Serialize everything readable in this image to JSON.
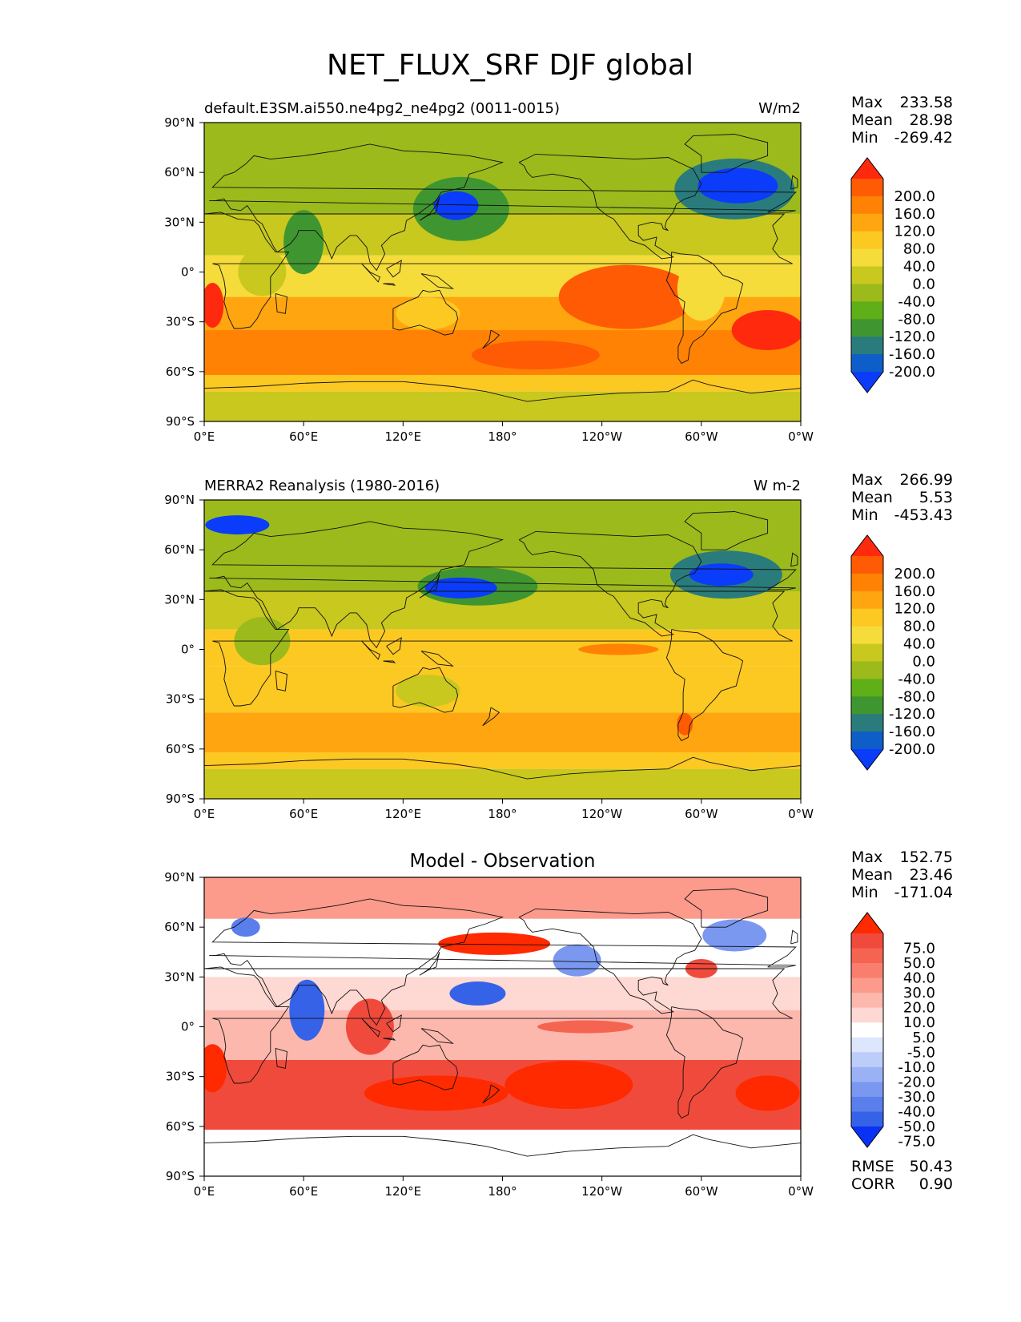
{
  "figure": {
    "title": "NET_FLUX_SRF DJF global"
  },
  "chart_data": [
    {
      "type": "heatmap",
      "subtitle_left": "default.E3SM.ai550.ne4pg2_ne4pg2 (0011-0015)",
      "subtitle_right": "W/m2",
      "stats": {
        "max_label": "Max",
        "max": "233.58",
        "mean_label": "Mean",
        "mean": "28.98",
        "min_label": "Min",
        "min": "-269.42"
      },
      "colorbar": {
        "levels": [
          "200.0",
          "160.0",
          "120.0",
          "80.0",
          "40.0",
          "0.0",
          "-40.0",
          "-80.0",
          "-120.0",
          "-160.0",
          "-200.0"
        ],
        "colors": [
          "#ff2a0e",
          "#ff5a04",
          "#ff8204",
          "#ffa50f",
          "#fcc822",
          "#f5dc3a",
          "#c8c81e",
          "#9cba1b",
          "#5faf18",
          "#3f9630",
          "#2a7c7c",
          "#0d5ec8",
          "#0a3cfa"
        ]
      },
      "xticks": [
        "0°E",
        "60°E",
        "120°E",
        "180°",
        "120°W",
        "60°W",
        "0°W"
      ],
      "yticks": [
        "90°N",
        "60°N",
        "30°N",
        "0°",
        "30°S",
        "60°S",
        "90°S"
      ],
      "xlim": [
        0,
        360
      ],
      "ylim": [
        -90,
        90
      ]
    },
    {
      "type": "heatmap",
      "subtitle_left": "MERRA2 Reanalysis (1980-2016)",
      "subtitle_right": "W m-2",
      "stats": {
        "max_label": "Max",
        "max": "266.99",
        "mean_label": "Mean",
        "mean": "5.53",
        "min_label": "Min",
        "min": "-453.43"
      },
      "colorbar": {
        "levels": [
          "200.0",
          "160.0",
          "120.0",
          "80.0",
          "40.0",
          "0.0",
          "-40.0",
          "-80.0",
          "-120.0",
          "-160.0",
          "-200.0"
        ],
        "colors": [
          "#ff2a0e",
          "#ff5a04",
          "#ff8204",
          "#ffa50f",
          "#fcc822",
          "#f5dc3a",
          "#c8c81e",
          "#9cba1b",
          "#5faf18",
          "#3f9630",
          "#2a7c7c",
          "#0d5ec8",
          "#0a3cfa"
        ]
      },
      "xticks": [
        "0°E",
        "60°E",
        "120°E",
        "180°",
        "120°W",
        "60°W",
        "0°W"
      ],
      "yticks": [
        "90°N",
        "60°N",
        "30°N",
        "0°",
        "30°S",
        "60°S",
        "90°S"
      ],
      "xlim": [
        0,
        360
      ],
      "ylim": [
        -90,
        90
      ]
    },
    {
      "type": "heatmap",
      "title": "Model - Observation",
      "stats": {
        "max_label": "Max",
        "max": "152.75",
        "mean_label": "Mean",
        "mean": "23.46",
        "min_label": "Min",
        "min": "-171.04"
      },
      "colorbar": {
        "levels": [
          "75.0",
          "50.0",
          "40.0",
          "30.0",
          "20.0",
          "10.0",
          "5.0",
          "-5.0",
          "-10.0",
          "-20.0",
          "-30.0",
          "-40.0",
          "-50.0",
          "-75.0"
        ],
        "colors": [
          "#ff2a00",
          "#f04a3c",
          "#f56450",
          "#fa7e6e",
          "#fc9a8c",
          "#fdb8ae",
          "#fed8d2",
          "#ffffff",
          "#dce6fc",
          "#bccdf9",
          "#9ab2f5",
          "#7a98f0",
          "#5a7eeb",
          "#3662e8",
          "#0a32f5"
        ]
      },
      "xticks": [
        "0°E",
        "60°E",
        "120°E",
        "180°",
        "120°W",
        "60°W",
        "0°W"
      ],
      "yticks": [
        "90°N",
        "60°N",
        "30°N",
        "0°",
        "30°S",
        "60°S",
        "90°S"
      ],
      "xlim": [
        0,
        360
      ],
      "ylim": [
        -90,
        90
      ],
      "rmse_label": "RMSE",
      "rmse": "50.43",
      "corr_label": "CORR",
      "corr": "0.90"
    }
  ]
}
